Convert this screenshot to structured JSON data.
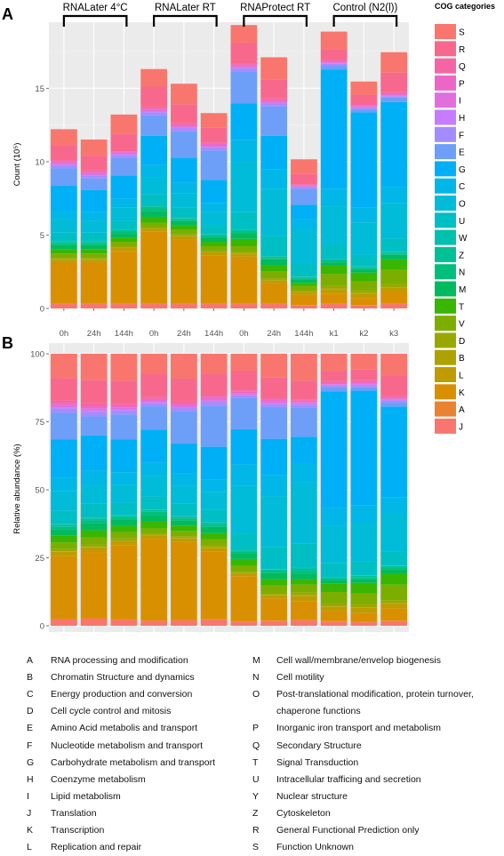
{
  "panel_labels": {
    "a": "A",
    "b": "B"
  },
  "groups": [
    "RNALater 4°C",
    "RNALater RT",
    "RNAProtect RT",
    "Control (N2(l))"
  ],
  "legend_title": "COG categories",
  "colors": {
    "S": "#F8766D",
    "R": "#F8688C",
    "Q": "#F564A3",
    "P": "#EC67C5",
    "I": "#E06EDC",
    "H": "#C77CFF",
    "F": "#A48CFF",
    "E": "#6D9EF8",
    "G": "#00B0F6",
    "C": "#00B7E8",
    "O": "#00BCD8",
    "U": "#00BFC4",
    "W": "#00C0AE",
    "Z": "#00C196",
    "N": "#00BF7D",
    "M": "#00BA5E",
    "T": "#39B600",
    "V": "#7CAE00",
    "D": "#99A800",
    "B": "#AEA200",
    "L": "#C09B00",
    "K": "#D89000",
    "A": "#EA8331",
    "J": "#F8766D"
  },
  "chart_data": [
    {
      "type": "bar",
      "stacked": true,
      "title": "",
      "xlabel": "",
      "ylabel": "Count (10⁵)",
      "ylim": [
        0,
        19.5
      ],
      "yticks": [
        0,
        5,
        10,
        15
      ],
      "grid": true,
      "legend": "right",
      "categories": [
        "0h",
        "24h",
        "144h",
        "0h",
        "24h",
        "144h",
        "0h",
        "24h",
        "144h",
        "k1",
        "k2",
        "k3"
      ],
      "stack_order": [
        "J",
        "A",
        "K",
        "L",
        "B",
        "D",
        "V",
        "T",
        "M",
        "N",
        "Z",
        "W",
        "U",
        "O",
        "C",
        "G",
        "E",
        "F",
        "H",
        "I",
        "P",
        "Q",
        "R",
        "S"
      ],
      "series": [
        {
          "name": "J",
          "values": [
            0.3,
            0.3,
            0.3,
            0.3,
            0.3,
            0.3,
            0.3,
            0.3,
            0.2,
            0.3,
            0.2,
            0.3
          ]
        },
        {
          "name": "A",
          "values": [
            0.02,
            0.02,
            0.02,
            0.02,
            0.02,
            0.02,
            0.02,
            0.02,
            0.02,
            0.02,
            0.02,
            0.02
          ]
        },
        {
          "name": "K",
          "values": [
            2.8,
            2.8,
            3.6,
            4.9,
            4.4,
            3.3,
            3.2,
            1.4,
            0.7,
            0.7,
            0.5,
            0.8
          ]
        },
        {
          "name": "L",
          "values": [
            0.2,
            0.2,
            0.2,
            0.2,
            0.2,
            0.2,
            0.2,
            0.2,
            0.2,
            0.3,
            0.3,
            0.3
          ]
        },
        {
          "name": "B",
          "values": [
            0.02,
            0.02,
            0.02,
            0.02,
            0.02,
            0.02,
            0.02,
            0.02,
            0.02,
            0.02,
            0.02,
            0.02
          ]
        },
        {
          "name": "D",
          "values": [
            0.1,
            0.1,
            0.1,
            0.1,
            0.1,
            0.1,
            0.1,
            0.1,
            0.1,
            0.2,
            0.2,
            0.2
          ]
        },
        {
          "name": "V",
          "values": [
            0.3,
            0.3,
            0.3,
            0.3,
            0.3,
            0.3,
            0.4,
            0.5,
            0.3,
            0.8,
            0.6,
            1.0
          ]
        },
        {
          "name": "T",
          "values": [
            0.3,
            0.3,
            0.3,
            0.4,
            0.3,
            0.3,
            0.5,
            0.4,
            0.2,
            0.6,
            0.6,
            0.7
          ]
        },
        {
          "name": "M",
          "values": [
            0.3,
            0.3,
            0.3,
            0.4,
            0.3,
            0.3,
            0.4,
            0.4,
            0.2,
            0.2,
            0.2,
            0.3
          ]
        },
        {
          "name": "N",
          "values": [
            0.1,
            0.1,
            0.1,
            0.2,
            0.1,
            0.1,
            0.1,
            0.1,
            0.1,
            0.1,
            0.1,
            0.1
          ]
        },
        {
          "name": "Z",
          "values": [
            0.1,
            0.1,
            0.1,
            0.1,
            0.1,
            0.1,
            0.1,
            0.1,
            0.1,
            0.1,
            0.1,
            0.1
          ]
        },
        {
          "name": "W",
          "values": [
            0.02,
            0.02,
            0.02,
            0.02,
            0.02,
            0.02,
            0.02,
            0.02,
            0.02,
            0.02,
            0.02,
            0.02
          ]
        },
        {
          "name": "U",
          "values": [
            0.6,
            0.6,
            0.6,
            0.8,
            0.7,
            0.6,
            1.2,
            1.4,
            0.9,
            1.0,
            0.8,
            0.9
          ]
        },
        {
          "name": "O",
          "values": [
            0.9,
            0.8,
            0.9,
            1.2,
            1.0,
            0.9,
            3.4,
            3.2,
            2.3,
            2.6,
            2.2,
            2.4
          ]
        },
        {
          "name": "C",
          "values": [
            0.6,
            0.6,
            0.6,
            0.8,
            0.7,
            0.6,
            1.5,
            1.3,
            0.7,
            1.2,
            1.0,
            1.1
          ]
        },
        {
          "name": "G",
          "values": [
            1.7,
            1.5,
            1.6,
            2.0,
            1.7,
            1.6,
            2.5,
            2.3,
            1.0,
            8.1,
            6.5,
            5.8
          ]
        },
        {
          "name": "E",
          "values": [
            1.2,
            0.8,
            1.2,
            1.4,
            1.8,
            2.0,
            2.2,
            2.0,
            1.1,
            0.3,
            0.2,
            0.3
          ]
        },
        {
          "name": "F",
          "values": [
            0.2,
            0.2,
            0.2,
            0.2,
            0.2,
            0.2,
            0.2,
            0.2,
            0.1,
            0.1,
            0.1,
            0.1
          ]
        },
        {
          "name": "H",
          "values": [
            0.05,
            0.05,
            0.05,
            0.05,
            0.05,
            0.05,
            0.05,
            0.05,
            0.05,
            0.05,
            0.05,
            0.05
          ]
        },
        {
          "name": "I",
          "values": [
            0.1,
            0.1,
            0.1,
            0.1,
            0.1,
            0.1,
            0.1,
            0.1,
            0.05,
            0.05,
            0.05,
            0.05
          ]
        },
        {
          "name": "P",
          "values": [
            0.1,
            0.1,
            0.1,
            0.1,
            0.1,
            0.1,
            0.1,
            0.1,
            0.05,
            0.1,
            0.1,
            0.1
          ]
        },
        {
          "name": "Q",
          "values": [
            0.1,
            0.1,
            0.1,
            0.1,
            0.1,
            0.1,
            0.1,
            0.1,
            0.05,
            0.1,
            0.1,
            0.1
          ]
        },
        {
          "name": "R",
          "values": [
            1.0,
            1.0,
            1.1,
            1.4,
            1.3,
            1.0,
            1.4,
            1.3,
            0.7,
            0.7,
            0.6,
            1.3
          ]
        },
        {
          "name": "S",
          "values": [
            1.1,
            1.1,
            1.3,
            1.2,
            1.4,
            1.0,
            1.2,
            1.5,
            1.0,
            1.2,
            0.9,
            1.4
          ]
        }
      ]
    },
    {
      "type": "bar",
      "stacked": true,
      "normalized": true,
      "title": "",
      "xlabel": "",
      "ylabel": "Relative abundance (%)",
      "ylim": [
        0,
        100
      ],
      "yticks": [
        0,
        25,
        50,
        75,
        100
      ],
      "grid": true,
      "legend": "right",
      "categories": [
        "0h",
        "24h",
        "144h",
        "0h",
        "24h",
        "144h",
        "0h",
        "24h",
        "144h",
        "k1",
        "k2",
        "k3"
      ],
      "derived_from": "same series as count panel, each bar scaled to 100%"
    }
  ],
  "legend_items": [
    "S",
    "R",
    "Q",
    "P",
    "I",
    "H",
    "F",
    "E",
    "G",
    "C",
    "O",
    "U",
    "W",
    "Z",
    "N",
    "M",
    "T",
    "V",
    "D",
    "B",
    "L",
    "K",
    "A",
    "J"
  ],
  "descriptions_left": [
    {
      "code": "A",
      "text": "RNA processing and modification"
    },
    {
      "code": "B",
      "text": "Chromatin Structure and dynamics"
    },
    {
      "code": "C",
      "text": "Energy production and conversion"
    },
    {
      "code": "D",
      "text": "Cell cycle control and mitosis"
    },
    {
      "code": "E",
      "text": "Amino Acid metabolis and transport"
    },
    {
      "code": "F",
      "text": "Nucleotide metabolism and transport"
    },
    {
      "code": "G",
      "text": "Carbohydrate metabolism and transport"
    },
    {
      "code": "H",
      "text": "Coenzyme metabolism"
    },
    {
      "code": "I",
      "text": "Lipid metabolism"
    },
    {
      "code": "J",
      "text": "Translation"
    },
    {
      "code": "K",
      "text": "Transcription"
    },
    {
      "code": "L",
      "text": "Replication and repair"
    }
  ],
  "descriptions_right": [
    {
      "code": "M",
      "text": "Cell wall/membrane/envelop biogenesis"
    },
    {
      "code": "N",
      "text": "Cell motility"
    },
    {
      "code": "O",
      "text": "Post-translational modification, protein turnover,"
    },
    {
      "code": "",
      "text": "chaperone functions"
    },
    {
      "code": "P",
      "text": "Inorganic iron transport and metabolism"
    },
    {
      "code": "Q",
      "text": "Secondary Structure"
    },
    {
      "code": "T",
      "text": "Signal Transduction"
    },
    {
      "code": "U",
      "text": "Intracellular trafficing and secretion"
    },
    {
      "code": "Y",
      "text": "Nuclear structure"
    },
    {
      "code": "Z",
      "text": "Cytoskeleton"
    },
    {
      "code": "R",
      "text": "General Functional Prediction only"
    },
    {
      "code": "S",
      "text": "Function Unknown"
    }
  ]
}
